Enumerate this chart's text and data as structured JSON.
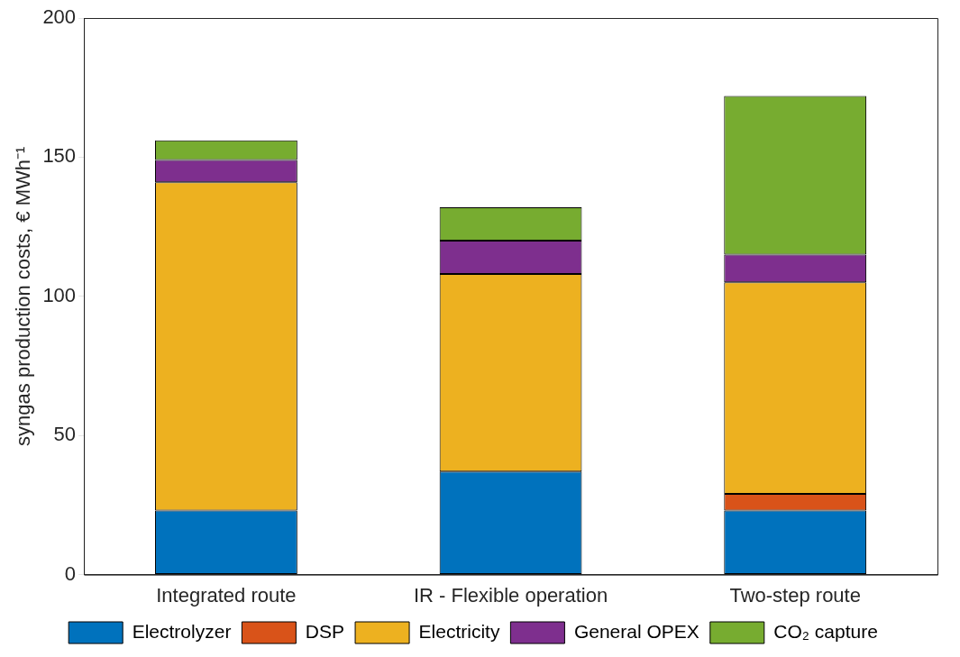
{
  "chart_data": {
    "type": "bar",
    "stacked": true,
    "ylabel": "syngas production costs, € MWh⁻¹",
    "categories": [
      "Integrated route",
      "IR - Flexible operation",
      "Two-step route"
    ],
    "series": [
      {
        "name": "Electrolyzer",
        "color": "#0072bd",
        "values": [
          23,
          37,
          23
        ]
      },
      {
        "name": "DSP",
        "color": "#d95319",
        "values": [
          0,
          0,
          6
        ]
      },
      {
        "name": "Electricity",
        "color": "#edb120",
        "values": [
          118,
          71,
          76
        ]
      },
      {
        "name": "General OPEX",
        "color": "#7e2f8e",
        "values": [
          8,
          12,
          10
        ]
      },
      {
        "name": "CO₂ capture",
        "color": "#77ac30",
        "values": [
          7,
          12,
          57
        ]
      }
    ],
    "ylim": [
      0,
      200
    ],
    "yticks": [
      0,
      50,
      100,
      150,
      200
    ],
    "grid": false,
    "legend": "bottom"
  }
}
